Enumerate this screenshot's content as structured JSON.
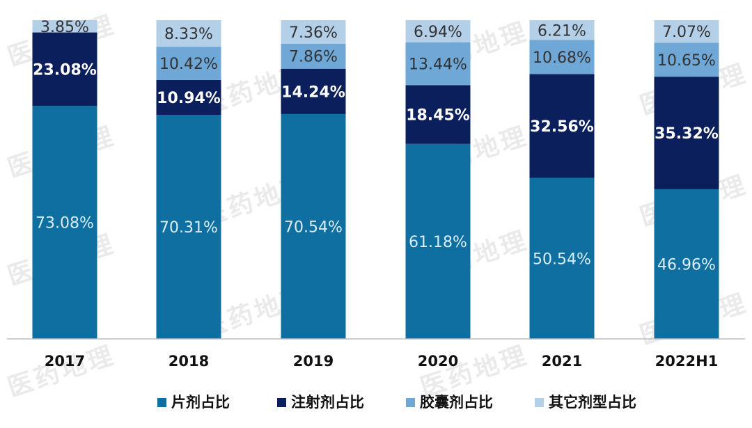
{
  "chart_data": {
    "type": "bar",
    "stacked": true,
    "percent_stacked": true,
    "categories": [
      "2017",
      "2018",
      "2019",
      "2020",
      "2021",
      "2022H1"
    ],
    "series": [
      {
        "name": "片剂占比",
        "color": "#0e6fa0",
        "values": [
          73.08,
          70.31,
          70.54,
          61.18,
          50.54,
          46.96
        ],
        "labels": [
          "73.08%",
          "70.31%",
          "70.54%",
          "61.18%",
          "50.54%",
          "46.96%"
        ],
        "label_color": "#d9eef8",
        "label_bold": false
      },
      {
        "name": "注射剂占比",
        "color": "#0a1f5c",
        "values": [
          23.08,
          10.94,
          14.24,
          18.45,
          32.56,
          35.32
        ],
        "labels": [
          "23.08%",
          "10.94%",
          "14.24%",
          "18.45%",
          "32.56%",
          "35.32%"
        ],
        "label_color": "#ffffff",
        "label_bold": true
      },
      {
        "name": "胶囊剂占比",
        "color": "#6fa7d7",
        "values": [
          0,
          10.42,
          7.86,
          13.44,
          10.68,
          10.65
        ],
        "labels": [
          "",
          "10.42%",
          "7.86%",
          "13.44%",
          "10.68%",
          "10.65%"
        ],
        "label_color": "#333333",
        "label_bold": false
      },
      {
        "name": "其它剂型占比",
        "color": "#b4cfe8",
        "values": [
          3.85,
          8.33,
          7.36,
          6.94,
          6.21,
          7.07
        ],
        "labels": [
          "3.85%",
          "8.33%",
          "7.36%",
          "6.94%",
          "6.21%",
          "7.07%"
        ],
        "label_color": "#333333",
        "label_bold": false
      }
    ],
    "ylim": [
      0,
      100
    ],
    "grid": false,
    "legend_position": "bottom"
  },
  "watermark": {
    "text": "医药地理"
  }
}
